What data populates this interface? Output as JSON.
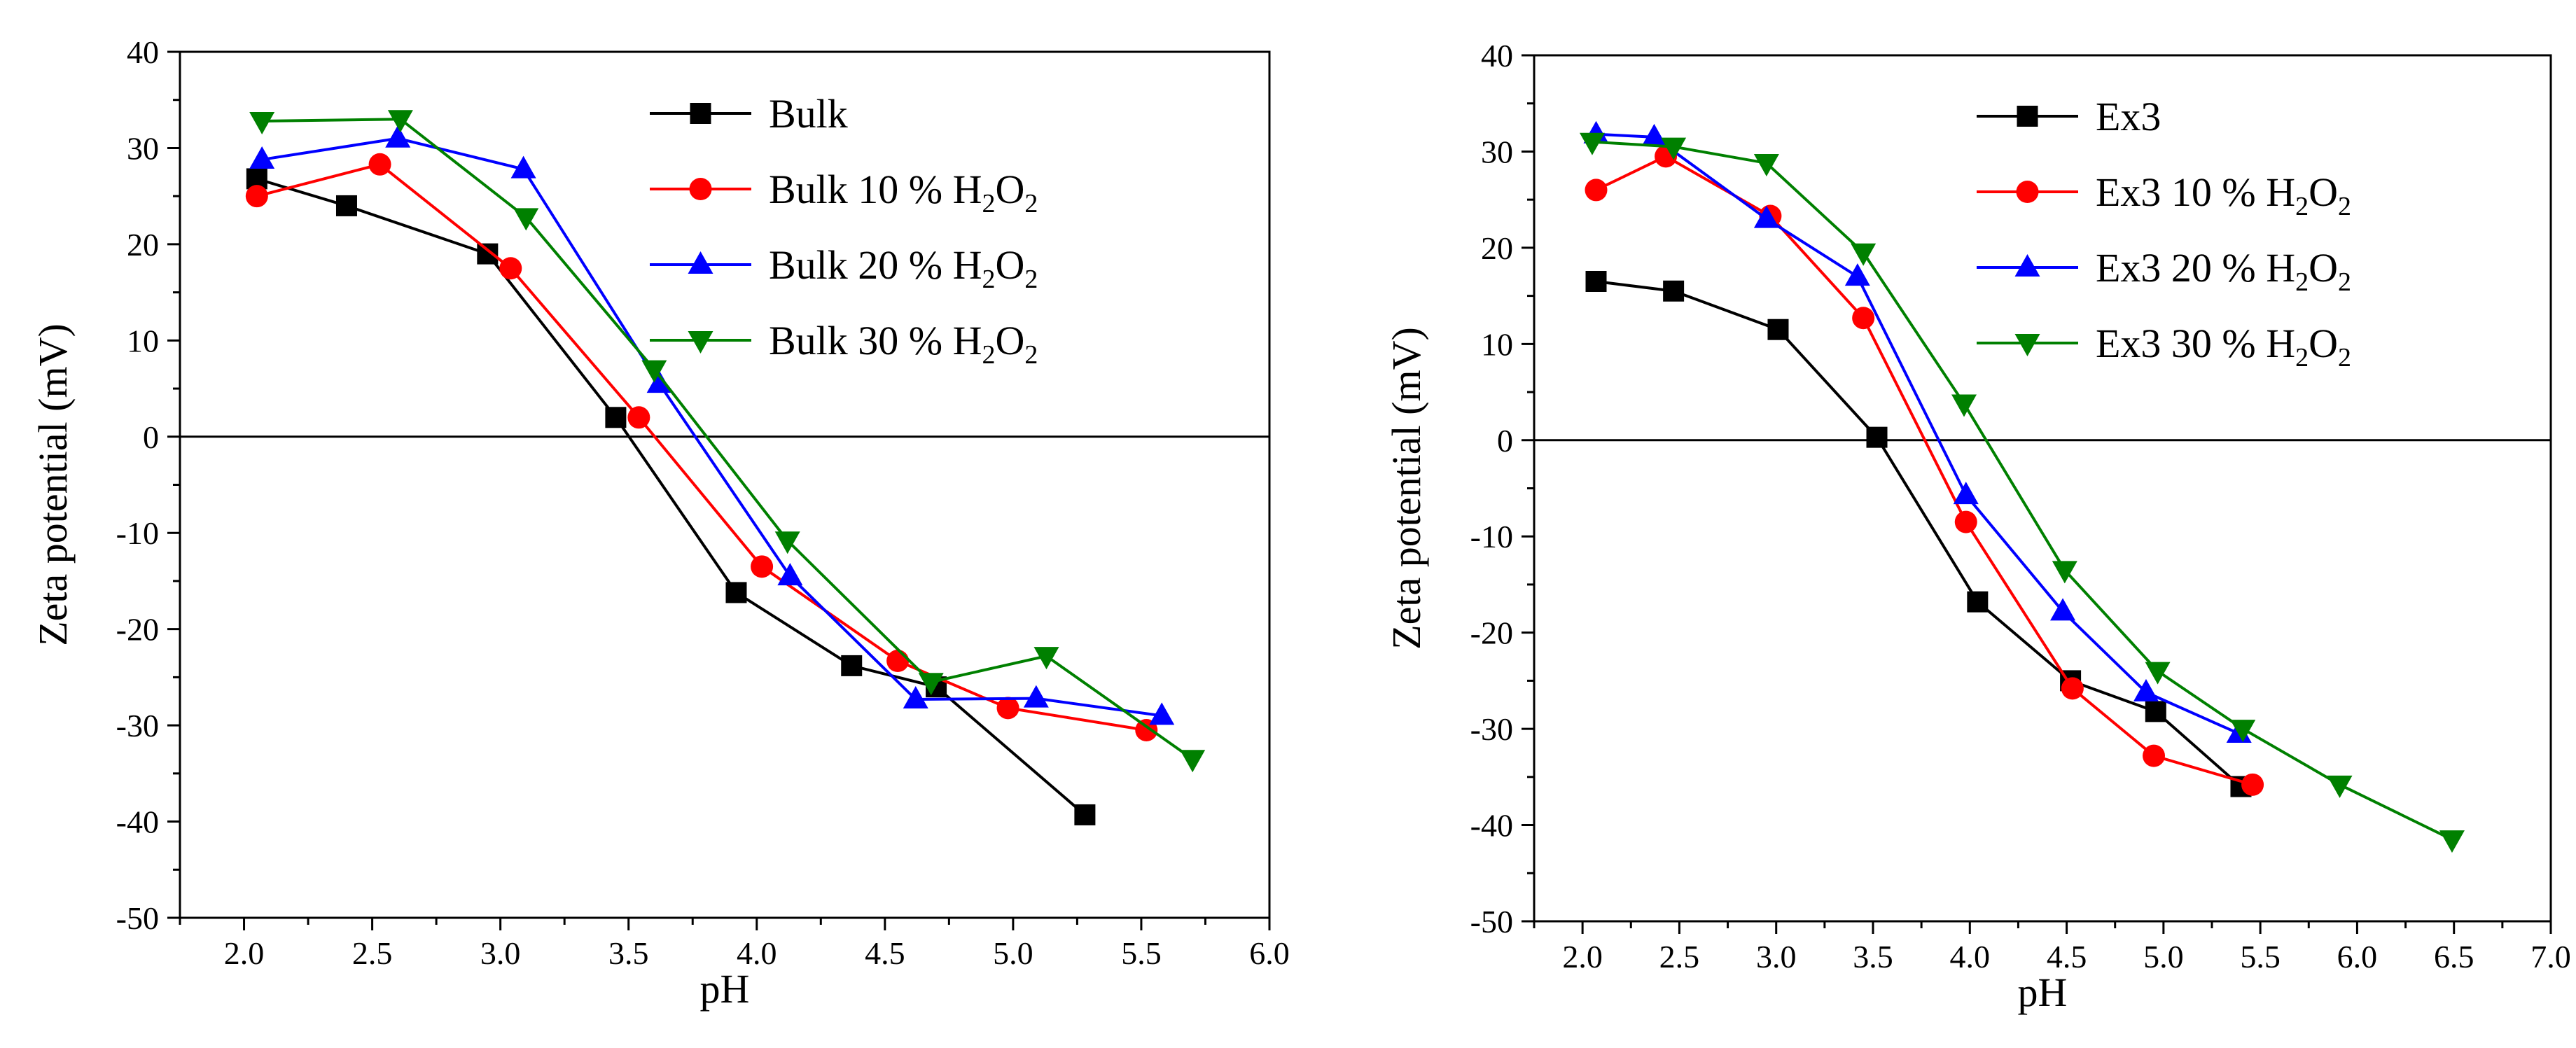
{
  "chart_data": [
    {
      "type": "line",
      "title": "",
      "xlabel": "pH",
      "ylabel": "Zeta potential (mV)",
      "xlim": [
        1.75,
        6.0
      ],
      "ylim": [
        -50,
        40
      ],
      "xticks": [
        2.0,
        2.5,
        3.0,
        3.5,
        4.0,
        4.5,
        5.0,
        5.5,
        6.0
      ],
      "xtick_labels": [
        "2.0",
        "2.5",
        "3.0",
        "3.5",
        "4.0",
        "4.5",
        "5.0",
        "5.5",
        "6.0"
      ],
      "yticks": [
        -50,
        -40,
        -30,
        -20,
        -10,
        0,
        10,
        20,
        30,
        40
      ],
      "ytick_labels": [
        "-50",
        "-40",
        "-30",
        "-20",
        "-10",
        "0",
        "10",
        "20",
        "30",
        "40"
      ],
      "zero_line": true,
      "grid": false,
      "legend_position": "top-right",
      "series": [
        {
          "name": "Bulk",
          "label_main": "Bulk",
          "marker": "square",
          "color": "#000000",
          "x": [
            2.05,
            2.4,
            2.95,
            3.45,
            3.92,
            4.37,
            4.7,
            5.28
          ],
          "y": [
            26.8,
            24.0,
            19.0,
            2.0,
            -16.2,
            -23.8,
            -26.0,
            -39.3
          ]
        },
        {
          "name": "Bulk 10 % H2O2",
          "label_main": "Bulk 10 % H",
          "label_sub1": "2",
          "label_mid": "O",
          "label_sub2": "2",
          "marker": "circle",
          "color": "#ff0000",
          "x": [
            2.05,
            2.53,
            3.04,
            3.54,
            4.02,
            4.55,
            4.98,
            5.52
          ],
          "y": [
            25.0,
            28.3,
            17.5,
            2.0,
            -13.5,
            -23.3,
            -28.2,
            -30.5
          ]
        },
        {
          "name": "Bulk 20 % H2O2",
          "label_main": "Bulk 20 % H",
          "label_sub1": "2",
          "label_mid": "O",
          "label_sub2": "2",
          "marker": "triangle-up",
          "color": "#0000ff",
          "x": [
            2.07,
            2.6,
            3.09,
            3.62,
            4.13,
            4.62,
            5.09,
            5.58
          ],
          "y": [
            28.8,
            31.0,
            27.8,
            5.5,
            -14.5,
            -27.3,
            -27.2,
            -29.0
          ]
        },
        {
          "name": "Bulk 30 % H2O2",
          "label_main": "Bulk 30 % H",
          "label_sub1": "2",
          "label_mid": "O",
          "label_sub2": "2",
          "marker": "triangle-down",
          "color": "#008000",
          "x": [
            2.07,
            2.61,
            3.1,
            3.6,
            4.12,
            4.68,
            5.13,
            5.7
          ],
          "y": [
            32.8,
            33.0,
            22.8,
            7.0,
            -10.8,
            -25.5,
            -22.8,
            -33.5
          ]
        }
      ]
    },
    {
      "type": "line",
      "title": "",
      "xlabel": "pH",
      "ylabel": "Zeta potential (mV)",
      "xlim": [
        1.75,
        7.0
      ],
      "ylim": [
        -50,
        40
      ],
      "xticks": [
        2.0,
        2.5,
        3.0,
        3.5,
        4.0,
        4.5,
        5.0,
        5.5,
        6.0,
        6.5,
        7.0
      ],
      "xtick_labels": [
        "2.0",
        "2.5",
        "3.0",
        "3.5",
        "4.0",
        "4.5",
        "5.0",
        "5.5",
        "6.0",
        "6.5",
        "7.0"
      ],
      "yticks": [
        -50,
        -40,
        -30,
        -20,
        -10,
        0,
        10,
        20,
        30,
        40
      ],
      "ytick_labels": [
        "-50",
        "-40",
        "-30",
        "-20",
        "-10",
        "0",
        "10",
        "20",
        "30",
        "40"
      ],
      "zero_line": true,
      "grid": false,
      "legend_position": "top-right",
      "series": [
        {
          "name": "Ex3",
          "label_main": "Ex3",
          "marker": "square",
          "color": "#000000",
          "x": [
            2.07,
            2.47,
            3.01,
            3.52,
            4.04,
            4.52,
            4.96,
            5.4
          ],
          "y": [
            16.5,
            15.5,
            11.5,
            0.3,
            -16.8,
            -25.0,
            -28.2,
            -36.0
          ]
        },
        {
          "name": "Ex3 10 % H2O2",
          "label_main": "Ex3 10 % H",
          "label_sub1": "2",
          "label_mid": "O",
          "label_sub2": "2",
          "marker": "circle",
          "color": "#ff0000",
          "x": [
            2.07,
            2.43,
            2.97,
            3.45,
            3.98,
            4.53,
            4.95,
            5.46
          ],
          "y": [
            26.0,
            29.5,
            23.3,
            12.7,
            -8.5,
            -25.8,
            -32.8,
            -35.8
          ]
        },
        {
          "name": "Ex3 20 % H2O2",
          "label_main": "Ex3 20 % H",
          "label_sub1": "2",
          "label_mid": "O",
          "label_sub2": "2",
          "marker": "triangle-up",
          "color": "#0000ff",
          "x": [
            2.07,
            2.37,
            2.95,
            3.42,
            3.98,
            4.48,
            4.91,
            5.39
          ],
          "y": [
            31.8,
            31.5,
            23.0,
            17.0,
            -5.7,
            -17.8,
            -26.2,
            -30.5
          ]
        },
        {
          "name": "Ex3 30 % H2O2",
          "label_main": "Ex3 30 % H",
          "label_sub1": "2",
          "label_mid": "O",
          "label_sub2": "2",
          "marker": "triangle-down",
          "color": "#008000",
          "x": [
            2.05,
            2.47,
            2.95,
            3.45,
            3.97,
            4.49,
            4.97,
            5.41,
            5.91,
            6.49
          ],
          "y": [
            31.0,
            30.5,
            28.8,
            19.5,
            3.8,
            -13.5,
            -24.0,
            -30.0,
            -35.8,
            -41.5
          ]
        }
      ]
    }
  ]
}
